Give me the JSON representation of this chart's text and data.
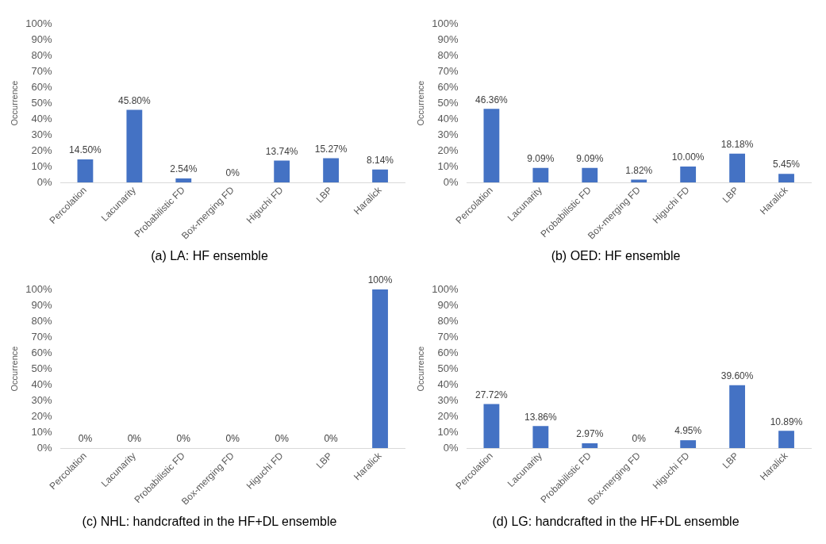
{
  "chart_data": [
    {
      "type": "bar",
      "title": "(a) LA: HF ensemble",
      "ylabel": "Occurrence",
      "categories": [
        "Percolation",
        "Lacunarity",
        "Probabilistic FD",
        "Box-merging FD",
        "Higuchi FD",
        "LBP",
        "Haralick"
      ],
      "values": [
        14.5,
        45.8,
        2.54,
        0,
        13.74,
        15.27,
        8.14
      ],
      "value_labels": [
        "14.50%",
        "45.80%",
        "2.54%",
        "0%",
        "13.74%",
        "15.27%",
        "8.14%"
      ],
      "color": "#4472c4",
      "ylim": [
        0,
        100
      ],
      "yticks": [
        {
          "value": 0,
          "label": "0%"
        },
        {
          "value": 10,
          "label": "10%"
        },
        {
          "value": 20,
          "label": "20%"
        },
        {
          "value": 30,
          "label": "30%"
        },
        {
          "value": 40,
          "label": "40%"
        },
        {
          "value": 50,
          "label": "50%"
        },
        {
          "value": 60,
          "label": "60%"
        },
        {
          "value": 70,
          "label": "70%"
        },
        {
          "value": 80,
          "label": "80%"
        },
        {
          "value": 90,
          "label": "90%"
        },
        {
          "value": 100,
          "label": "100%"
        }
      ]
    },
    {
      "type": "bar",
      "title": "(b) OED: HF ensemble",
      "ylabel": "Occurrence",
      "categories": [
        "Percolation",
        "Lacunarity",
        "Probabilistic FD",
        "Box-merging FD",
        "Higuchi FD",
        "LBP",
        "Haralick"
      ],
      "values": [
        46.36,
        9.09,
        9.09,
        1.82,
        10.0,
        18.18,
        5.45
      ],
      "value_labels": [
        "46.36%",
        "9.09%",
        "9.09%",
        "1.82%",
        "10.00%",
        "18.18%",
        "5.45%"
      ],
      "color": "#4472c4",
      "ylim": [
        0,
        100
      ],
      "yticks": [
        {
          "value": 0,
          "label": "0%"
        },
        {
          "value": 10,
          "label": "10%"
        },
        {
          "value": 20,
          "label": "20%"
        },
        {
          "value": 30,
          "label": "30%"
        },
        {
          "value": 40,
          "label": "40%"
        },
        {
          "value": 50,
          "label": "50%"
        },
        {
          "value": 60,
          "label": "60%"
        },
        {
          "value": 70,
          "label": "70%"
        },
        {
          "value": 80,
          "label": "80%"
        },
        {
          "value": 90,
          "label": "90%"
        },
        {
          "value": 100,
          "label": "100%"
        }
      ]
    },
    {
      "type": "bar",
      "title": "(c) NHL: handcrafted in the HF+DL ensemble",
      "ylabel": "Occurrence",
      "categories": [
        "Percolation",
        "Lacunarity",
        "Probabilistic FD",
        "Box-merging FD",
        "Higuchi FD",
        "LBP",
        "Haralick"
      ],
      "values": [
        0,
        0,
        0,
        0,
        0,
        0,
        100
      ],
      "value_labels": [
        "0%",
        "0%",
        "0%",
        "0%",
        "0%",
        "0%",
        "100%"
      ],
      "color": "#4472c4",
      "ylim": [
        0,
        100
      ],
      "yticks": [
        {
          "value": 0,
          "label": "0%"
        },
        {
          "value": 10,
          "label": "10%"
        },
        {
          "value": 20,
          "label": "20%"
        },
        {
          "value": 30,
          "label": "30%"
        },
        {
          "value": 40,
          "label": "40%"
        },
        {
          "value": 50,
          "label": "50%"
        },
        {
          "value": 60,
          "label": "60%"
        },
        {
          "value": 70,
          "label": "70%"
        },
        {
          "value": 80,
          "label": "80%"
        },
        {
          "value": 90,
          "label": "90%"
        },
        {
          "value": 100,
          "label": "100%"
        }
      ]
    },
    {
      "type": "bar",
      "title": "(d) LG: handcrafted in the HF+DL ensemble",
      "ylabel": "Occurrence",
      "categories": [
        "Percolation",
        "Lacunarity",
        "Probabilistic FD",
        "Box-merging FD",
        "Higuchi FD",
        "LBP",
        "Haralick"
      ],
      "values": [
        27.72,
        13.86,
        2.97,
        0,
        4.95,
        39.6,
        10.89
      ],
      "value_labels": [
        "27.72%",
        "13.86%",
        "2.97%",
        "0%",
        "4.95%",
        "39.60%",
        "10.89%"
      ],
      "color": "#4472c4",
      "ylim": [
        0,
        100
      ],
      "yticks": [
        {
          "value": 0,
          "label": "0%"
        },
        {
          "value": 10,
          "label": "10%"
        },
        {
          "value": 20,
          "label": "20%"
        },
        {
          "value": 30,
          "label": "30%"
        },
        {
          "value": 40,
          "label": "40%"
        },
        {
          "value": 50,
          "label": "50%"
        },
        {
          "value": 60,
          "label": "60%"
        },
        {
          "value": 70,
          "label": "70%"
        },
        {
          "value": 80,
          "label": "80%"
        },
        {
          "value": 90,
          "label": "90%"
        },
        {
          "value": 100,
          "label": "100%"
        }
      ]
    }
  ]
}
